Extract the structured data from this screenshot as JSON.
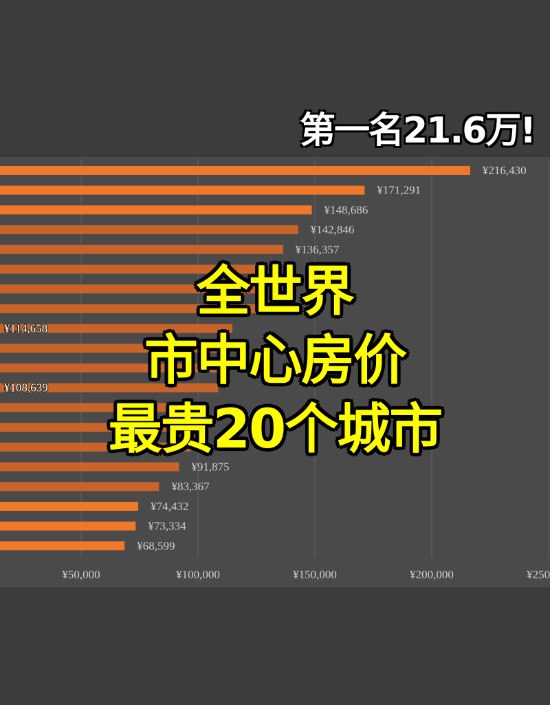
{
  "overlay": {
    "top_text": "第一名21.6万!",
    "title_lines": [
      "全世界",
      "市中心房价",
      "最贵20个城市"
    ]
  },
  "chart_data": {
    "type": "bar",
    "orientation": "horizontal",
    "values": [
      216430,
      171291,
      148686,
      142846,
      136357,
      128000,
      127800,
      126000,
      114658,
      112000,
      110000,
      108639,
      100000,
      99400,
      97000,
      91875,
      83367,
      74432,
      73334,
      68599
    ],
    "labels": [
      "¥216,430",
      "¥171,291",
      "¥148,686",
      "¥142,846",
      "¥136,357",
      "",
      "",
      "",
      "¥114,658",
      "",
      "",
      "¥108,639",
      "",
      "",
      "",
      "¥91,875",
      "¥83,367",
      "¥74,432",
      "¥73,334",
      "¥68,599"
    ],
    "xticks": [
      "¥50,000",
      "¥100,000",
      "¥150,000",
      "¥200,000",
      "¥250,000"
    ],
    "xtick_values": [
      50000,
      100000,
      150000,
      200000,
      250000
    ],
    "xlim": [
      0,
      250000
    ],
    "grid": true,
    "colors": {
      "bar": "#f0782a",
      "bar_dim": "#c8642a",
      "background": "#3c3c3c",
      "plot": "#4a4a4a",
      "label": "#cfcfcf"
    }
  }
}
